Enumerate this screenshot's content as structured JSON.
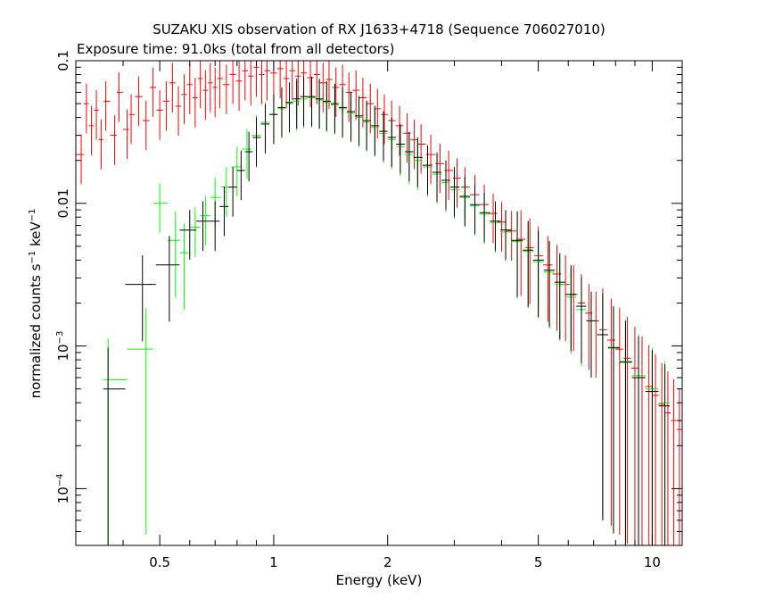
{
  "chart_data": {
    "type": "scatter",
    "title": "SUZAKU XIS observation of RX J1633+4718 (Sequence 706027010)",
    "subtitle": "Exposure time: 91.0ks (total from all detectors)",
    "xlabel": "Energy (keV)",
    "ylabel_parts": {
      "base": "normalized counts s",
      "exp1": "−1",
      "mid": " keV",
      "exp2": "−1"
    },
    "x_scale": "log",
    "y_scale": "log",
    "xlim": [
      0.3,
      12.0
    ],
    "ylim": [
      4e-05,
      0.1
    ],
    "x_ticks": [
      {
        "value": 0.5,
        "label": "0.5"
      },
      {
        "value": 1,
        "label": "1"
      },
      {
        "value": 2,
        "label": "2"
      },
      {
        "value": 5,
        "label": "5"
      },
      {
        "value": 10,
        "label": "10"
      }
    ],
    "y_ticks": [
      {
        "value": 0.0001,
        "label_base": "10",
        "label_exp": "−4"
      },
      {
        "value": 0.001,
        "label_base": "10",
        "label_exp": "−3"
      },
      {
        "value": 0.01,
        "label": "0.01"
      },
      {
        "value": 0.1,
        "label": "0.1"
      }
    ],
    "legend": "none",
    "grid": false,
    "series": [
      {
        "color": "#ff0000",
        "points": [
          [
            0.31,
            0.022
          ],
          [
            0.32,
            0.05
          ],
          [
            0.33,
            0.035
          ],
          [
            0.34,
            0.045
          ],
          [
            0.35,
            0.028
          ],
          [
            0.36,
            0.052
          ],
          [
            0.38,
            0.03
          ],
          [
            0.39,
            0.06
          ],
          [
            0.41,
            0.033
          ],
          [
            0.42,
            0.042
          ],
          [
            0.44,
            0.056
          ],
          [
            0.46,
            0.038
          ],
          [
            0.48,
            0.065
          ],
          [
            0.5,
            0.045
          ],
          [
            0.52,
            0.052
          ],
          [
            0.54,
            0.07
          ],
          [
            0.56,
            0.048
          ],
          [
            0.58,
            0.058
          ],
          [
            0.6,
            0.068
          ],
          [
            0.62,
            0.055
          ],
          [
            0.64,
            0.075
          ],
          [
            0.66,
            0.062
          ],
          [
            0.68,
            0.07
          ],
          [
            0.7,
            0.065
          ],
          [
            0.72,
            0.075
          ],
          [
            0.75,
            0.068
          ],
          [
            0.78,
            0.08
          ],
          [
            0.81,
            0.072
          ],
          [
            0.84,
            0.085
          ],
          [
            0.87,
            0.078
          ],
          [
            0.9,
            0.09
          ],
          [
            0.93,
            0.08
          ],
          [
            0.96,
            0.085
          ],
          [
            1.0,
            0.082
          ],
          [
            1.04,
            0.088
          ],
          [
            1.08,
            0.075
          ],
          [
            1.12,
            0.085
          ],
          [
            1.16,
            0.078
          ],
          [
            1.2,
            0.082
          ],
          [
            1.25,
            0.076
          ],
          [
            1.3,
            0.08
          ],
          [
            1.35,
            0.07
          ],
          [
            1.4,
            0.074
          ],
          [
            1.46,
            0.065
          ],
          [
            1.52,
            0.068
          ],
          [
            1.58,
            0.06
          ],
          [
            1.65,
            0.062
          ],
          [
            1.72,
            0.055
          ],
          [
            1.8,
            0.05
          ],
          [
            1.88,
            0.046
          ],
          [
            1.96,
            0.042
          ],
          [
            2.05,
            0.038
          ],
          [
            2.15,
            0.035
          ],
          [
            2.25,
            0.031
          ],
          [
            2.35,
            0.028
          ],
          [
            2.45,
            0.026
          ],
          [
            2.6,
            0.022
          ],
          [
            2.75,
            0.019
          ],
          [
            2.9,
            0.017
          ],
          [
            3.05,
            0.015
          ],
          [
            3.2,
            0.013
          ],
          [
            3.4,
            0.0115
          ],
          [
            3.6,
            0.0098
          ],
          [
            3.8,
            0.0085
          ],
          [
            4.0,
            0.0074
          ],
          [
            4.25,
            0.0064
          ],
          [
            4.5,
            0.0056
          ],
          [
            4.75,
            0.0049
          ],
          [
            5.0,
            0.0043
          ],
          [
            5.3,
            0.0037
          ],
          [
            5.6,
            0.0032
          ],
          [
            5.9,
            0.0027
          ],
          [
            6.2,
            0.0023
          ],
          [
            6.5,
            0.002
          ],
          [
            6.8,
            0.0017
          ],
          [
            7.1,
            0.0015
          ],
          [
            7.4,
            0.0013
          ],
          [
            7.8,
            0.0011
          ],
          [
            8.2,
            0.00095
          ],
          [
            8.6,
            0.00082
          ],
          [
            9.0,
            0.0007
          ],
          [
            9.4,
            0.0006
          ],
          [
            9.8,
            0.00052
          ],
          [
            10.2,
            0.00045
          ],
          [
            10.6,
            0.00039
          ],
          [
            11.0,
            0.00034
          ],
          [
            11.4,
            0.0003
          ],
          [
            11.8,
            0.00026
          ]
        ]
      },
      {
        "color": "#00ff00",
        "points": [
          [
            0.365,
            0.00058
          ],
          [
            0.46,
            0.00095
          ],
          [
            0.5,
            0.01
          ],
          [
            0.55,
            0.0055
          ],
          [
            0.58,
            0.0045
          ],
          [
            0.62,
            0.0068
          ],
          [
            0.66,
            0.0082
          ],
          [
            0.7,
            0.011
          ],
          [
            0.75,
            0.013
          ],
          [
            0.8,
            0.018
          ],
          [
            0.85,
            0.024
          ],
          [
            0.9,
            0.03
          ],
          [
            0.95,
            0.037
          ],
          [
            1.0,
            0.042
          ],
          [
            1.05,
            0.046
          ],
          [
            1.1,
            0.05
          ],
          [
            1.15,
            0.052
          ],
          [
            1.2,
            0.054
          ],
          [
            1.26,
            0.055
          ],
          [
            1.32,
            0.053
          ],
          [
            1.38,
            0.051
          ],
          [
            1.45,
            0.049
          ],
          [
            1.52,
            0.046
          ],
          [
            1.6,
            0.043
          ],
          [
            1.68,
            0.04
          ],
          [
            1.76,
            0.037
          ],
          [
            1.85,
            0.034
          ],
          [
            1.95,
            0.031
          ],
          [
            2.05,
            0.028
          ],
          [
            2.16,
            0.025
          ],
          [
            2.28,
            0.022
          ],
          [
            2.4,
            0.02
          ],
          [
            2.55,
            0.018
          ],
          [
            2.7,
            0.016
          ],
          [
            2.85,
            0.014
          ],
          [
            3.0,
            0.0125
          ],
          [
            3.2,
            0.011
          ],
          [
            3.4,
            0.0096
          ],
          [
            3.6,
            0.0084
          ],
          [
            3.85,
            0.0073
          ],
          [
            4.1,
            0.0063
          ],
          [
            4.4,
            0.0054
          ],
          [
            4.7,
            0.0046
          ],
          [
            5.0,
            0.0039
          ],
          [
            5.35,
            0.0033
          ],
          [
            5.7,
            0.0027
          ],
          [
            6.1,
            0.0022
          ],
          [
            6.5,
            0.0018
          ],
          [
            6.9,
            0.0015
          ],
          [
            7.4,
            0.0012
          ],
          [
            7.9,
            0.00098
          ],
          [
            8.5,
            0.00078
          ],
          [
            9.2,
            0.00062
          ],
          [
            10.0,
            0.0005
          ],
          [
            10.8,
            0.0004
          ]
        ]
      },
      {
        "color": "#000000",
        "points": [
          [
            0.365,
            0.0005
          ],
          [
            0.45,
            0.0027
          ],
          [
            0.53,
            0.0037
          ],
          [
            0.6,
            0.0065
          ],
          [
            0.65,
            0.0075
          ],
          [
            0.7,
            0.0075
          ],
          [
            0.74,
            0.0095
          ],
          [
            0.78,
            0.013
          ],
          [
            0.82,
            0.017
          ],
          [
            0.86,
            0.023
          ],
          [
            0.9,
            0.029
          ],
          [
            0.95,
            0.036
          ],
          [
            1.0,
            0.042
          ],
          [
            1.05,
            0.047
          ],
          [
            1.1,
            0.051
          ],
          [
            1.15,
            0.054
          ],
          [
            1.2,
            0.056
          ],
          [
            1.26,
            0.056
          ],
          [
            1.32,
            0.054
          ],
          [
            1.38,
            0.052
          ],
          [
            1.45,
            0.05
          ],
          [
            1.52,
            0.047
          ],
          [
            1.6,
            0.044
          ],
          [
            1.68,
            0.041
          ],
          [
            1.76,
            0.038
          ],
          [
            1.85,
            0.035
          ],
          [
            1.95,
            0.032
          ],
          [
            2.05,
            0.029
          ],
          [
            2.16,
            0.026
          ],
          [
            2.28,
            0.023
          ],
          [
            2.4,
            0.021
          ],
          [
            2.55,
            0.0185
          ],
          [
            2.7,
            0.0165
          ],
          [
            2.85,
            0.0145
          ],
          [
            3.0,
            0.013
          ],
          [
            3.2,
            0.0112
          ],
          [
            3.4,
            0.0098
          ],
          [
            3.6,
            0.0086
          ],
          [
            3.85,
            0.0075
          ],
          [
            4.1,
            0.0065
          ],
          [
            4.4,
            0.0055
          ],
          [
            4.7,
            0.0047
          ],
          [
            5.0,
            0.004
          ],
          [
            5.35,
            0.0034
          ],
          [
            5.7,
            0.0028
          ],
          [
            6.1,
            0.0023
          ],
          [
            6.5,
            0.0019
          ],
          [
            6.9,
            0.0015
          ],
          [
            7.4,
            0.0012
          ],
          [
            7.9,
            0.00097
          ],
          [
            8.5,
            0.00077
          ],
          [
            9.2,
            0.0006
          ],
          [
            10.0,
            0.00048
          ],
          [
            10.8,
            0.00038
          ]
        ]
      }
    ]
  }
}
